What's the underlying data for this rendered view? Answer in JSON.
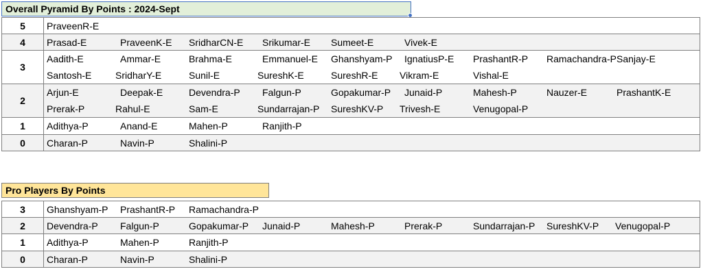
{
  "sheet1": {
    "title": "Overall Pyramid By Points : 2024-Sept",
    "rows": [
      {
        "level": "5",
        "names": [
          "PraveenR-E"
        ]
      },
      {
        "level": "4",
        "names": [
          "Prasad-E",
          "PraveenK-E",
          "SridharCN-E",
          "Srikumar-E",
          "Sumeet-E",
          "Vivek-E"
        ]
      },
      {
        "level": "3",
        "names": [
          "Aadith-E",
          "Ammar-E",
          "Brahma-E",
          "Emmanuel-E",
          "Ghanshyam-P",
          "IgnatiusP-E",
          "PrashantR-P",
          "Ramachandra-P",
          "Sanjay-E",
          "Santosh-E",
          "SridharY-E",
          "Sunil-E",
          "SureshK-E",
          "SureshR-E",
          "Vikram-E",
          "Vishal-E"
        ]
      },
      {
        "level": "2",
        "names": [
          "Arjun-E",
          "Deepak-E",
          "Devendra-P",
          "Falgun-P",
          "Gopakumar-P",
          "Junaid-P",
          "Mahesh-P",
          "Nauzer-E",
          "PrashantK-E",
          "Prerak-P",
          "Rahul-E",
          "Sam-E",
          "Sundarrajan-P",
          "SureshKV-P",
          "Trivesh-E",
          "Venugopal-P"
        ]
      },
      {
        "level": "1",
        "names": [
          "Adithya-P",
          "Anand-E",
          "Mahen-P",
          "Ranjith-P"
        ]
      },
      {
        "level": "0",
        "names": [
          "Charan-P",
          "Navin-P",
          "Shalini-P"
        ]
      }
    ]
  },
  "sheet2": {
    "title": "Pro Players By Points",
    "rows": [
      {
        "level": "3",
        "names": [
          "Ghanshyam-P",
          "PrashantR-P",
          "Ramachandra-P"
        ]
      },
      {
        "level": "2",
        "names": [
          "Devendra-P",
          "Falgun-P",
          "Gopakumar-P",
          "Junaid-P",
          "Mahesh-P",
          "Prerak-P",
          "Sundarrajan-P",
          "SureshKV-P",
          "Venugopal-P"
        ]
      },
      {
        "level": "1",
        "names": [
          "Adithya-P",
          "Mahen-P",
          "Ranjith-P"
        ]
      },
      {
        "level": "0",
        "names": [
          "Charan-P",
          "Navin-P",
          "Shalini-P"
        ]
      }
    ]
  },
  "colors": {
    "header1_bg": "#e2efd9",
    "header2_bg": "#ffe599",
    "selection": "#4472c4",
    "alt_row": "#f2f2f2"
  }
}
